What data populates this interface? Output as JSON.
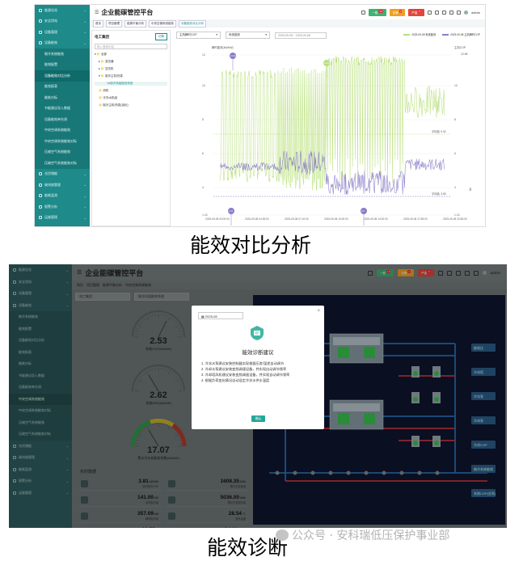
{
  "panel1": {
    "app_title": "企业能碳管控平台",
    "sidebar": [
      {
        "label": "能源总览",
        "type": "top"
      },
      {
        "label": "安全用电",
        "type": "top"
      },
      {
        "label": "设备管理",
        "type": "top"
      },
      {
        "label": "设备能效",
        "type": "top"
      },
      {
        "label": "制冷系统能效",
        "type": "sub"
      },
      {
        "label": "能效配置",
        "type": "sub"
      },
      {
        "label": "设备能效对比分析",
        "type": "sub",
        "active": true
      },
      {
        "label": "能效报表",
        "type": "sub"
      },
      {
        "label": "能耗对标",
        "type": "sub"
      },
      {
        "label": "节能建议导入数据",
        "type": "sub"
      },
      {
        "label": "设备能效单台测",
        "type": "sub"
      },
      {
        "label": "中央空调系统能效",
        "type": "sub"
      },
      {
        "label": "中央空调系统能效对标",
        "type": "sub"
      },
      {
        "label": "压缩空气系统能效",
        "type": "sub"
      },
      {
        "label": "压缩空气系统能效对标",
        "type": "sub"
      },
      {
        "label": "光伏储能",
        "type": "top"
      },
      {
        "label": "碳排放管理",
        "type": "top"
      },
      {
        "label": "能耗监测",
        "type": "top"
      },
      {
        "label": "报警分析",
        "type": "top"
      },
      {
        "label": "运维管理",
        "type": "top"
      }
    ],
    "header": {
      "tags": [
        {
          "label": "一般",
          "badge": "13",
          "color": "#3cb371"
        },
        {
          "label": "告警",
          "badge": "2",
          "color": "#f0a020"
        },
        {
          "label": "严重",
          "badge": "8",
          "color": "#e2463c"
        }
      ],
      "user": "admin"
    },
    "breadcrumb": [
      "首页",
      "项目管理",
      "能源平衡分析",
      "中央空调系统能效",
      "设备能效对比分析"
    ],
    "tree": {
      "title": "电工集团",
      "button": "切换",
      "search_placeholder": "输入搜索内容",
      "nodes": [
        {
          "label": "▾ 📁 全部",
          "indent": 0
        },
        {
          "label": "▸ 📁 变压器",
          "indent": 1
        },
        {
          "label": "▸ 📁 空压机",
          "indent": 1
        },
        {
          "label": "▾ 📁 制冷主机/热泵",
          "indent": 1
        },
        {
          "label": "📄 1#制冷机组能效系统",
          "indent": 2,
          "selected": true
        },
        {
          "label": "📁 风机",
          "indent": 1
        },
        {
          "label": "📁 冷冻水机组",
          "indent": 1
        },
        {
          "label": "📁 制冷主机/热泵(溴化)",
          "indent": 1
        }
      ]
    },
    "controls": {
      "metric": "主机瞬时COP",
      "compare": "系统能效",
      "date_range": "2025-09-08 ~ 2025-09-08"
    },
    "legend": [
      "2025-09-08 系统能效",
      "2025-09-08 主机瞬时COP"
    ],
    "chart_data": {
      "type": "line",
      "y_left_label": "瞬时能效(kW/kW)",
      "y_right_label": "主机COP",
      "x_ticks": [
        "2025-09-08 00:00:00",
        "2025-09-08 04:35:00",
        "2025-09-08 07:10:00",
        "2025-09-08 10:00:00",
        "2025-09-08 14:00:00",
        "2025-09-08 17:55:00",
        "2025-09-08 23:55:00"
      ],
      "y_left_ticks": [
        "1.24",
        "4",
        "6",
        "8",
        "10",
        "12"
      ],
      "y_right_ticks": [
        "1.24",
        "4",
        "6",
        "8",
        "10",
        "12.65"
      ],
      "y_right_top": "12.65",
      "avg_labels": [
        "平均值: 9.32",
        "平均值: 3.95"
      ],
      "markers": [
        "12.14",
        "1.24",
        "0.3",
        "12.65"
      ]
    }
  },
  "caption1": "能效对比分析",
  "panel2": {
    "app_title": "企业能碳管控平台",
    "sidebar": [
      {
        "label": "能源总览",
        "type": "top"
      },
      {
        "label": "安全用电",
        "type": "top"
      },
      {
        "label": "设备管理",
        "type": "top"
      },
      {
        "label": "设备能效",
        "type": "top"
      },
      {
        "label": "制冷系统能效",
        "type": "sub"
      },
      {
        "label": "能效配置",
        "type": "sub"
      },
      {
        "label": "设备能效对比分析",
        "type": "sub"
      },
      {
        "label": "能效报表",
        "type": "sub"
      },
      {
        "label": "能耗对标",
        "type": "sub"
      },
      {
        "label": "节能建议导入数据",
        "type": "sub"
      },
      {
        "label": "设备能效单台测",
        "type": "sub"
      },
      {
        "label": "中央空调系统能效",
        "type": "sub",
        "active": true
      },
      {
        "label": "中央空调系统能效对标",
        "type": "sub"
      },
      {
        "label": "压缩空气系统能效",
        "type": "sub"
      },
      {
        "label": "压缩空气系统能效对标",
        "type": "sub"
      },
      {
        "label": "光伏储能",
        "type": "top"
      },
      {
        "label": "碳排放管理",
        "type": "top"
      },
      {
        "label": "能耗监测",
        "type": "top"
      },
      {
        "label": "报警分析",
        "type": "top"
      },
      {
        "label": "运维管理",
        "type": "top"
      }
    ],
    "header": {
      "tags": [
        {
          "label": "一般",
          "badge": "13",
          "color": "#3cb371"
        },
        {
          "label": "告警",
          "badge": "2",
          "color": "#f0a020"
        },
        {
          "label": "严重",
          "badge": "8",
          "color": "#e2463c"
        }
      ],
      "user": "admin"
    },
    "breadcrumb": [
      "首页",
      "项目管理",
      "能源平衡分析",
      "中央空调系统能效"
    ],
    "controls": {
      "project": "电工集团",
      "system": "制冷机组能效系统",
      "tab1": "能效",
      "tab2": "运行分析"
    },
    "gauges": [
      {
        "value": "2.53",
        "label": "系统COP(kW/kW)"
      },
      {
        "value": "2.62",
        "label": "系统EER(kW/kW)"
      },
      {
        "value": "17.07",
        "label": "累计冷水机能效系数(kW/kW)"
      }
    ],
    "realtime_title": "实时数据",
    "realtime": [
      {
        "value": "3.81",
        "unit": "kW/kW",
        "label": "实时制冷COP"
      },
      {
        "value": "1608.35",
        "unit": "kWh",
        "label": "累计日总耗电"
      },
      {
        "value": "141.00",
        "unit": "kW",
        "label": "实时制冷量"
      },
      {
        "value": "5036.00",
        "unit": "kWh",
        "label": "累计日总制冷量"
      },
      {
        "value": "357.09",
        "unit": "kW",
        "label": "瞬时制冷量"
      },
      {
        "value": "28.54",
        "unit": "℃",
        "label": "室外温度"
      },
      {
        "value": "82.55",
        "unit": "%",
        "label": "室外相对湿度"
      },
      {
        "value": "94.01",
        "unit": "kWh/t",
        "label": "累计冷量能效"
      }
    ],
    "modal": {
      "date": "2025-08",
      "title": "能效诊断建议",
      "items": [
        "1. 冷冻水泵建议安装控制器实现根据压差/温差自动调节",
        "2. 冷却水泵建议安装变频调速设备，并实现自动调节频率",
        "3. 冷却塔风机建议安装变频调速设备，并实现自动调节频率",
        "4. 根据负荷变化情况自动设定冷冻水供水温度"
      ],
      "ok": "确认"
    },
    "diagram_buttons": [
      "能效比",
      "冷却塔",
      "冷冻泵",
      "冷却泵",
      "冷却COP",
      "制冷系统能效",
      "系统COP(含泵)"
    ]
  },
  "caption2": "能效诊断",
  "watermark": "公众号 · 安科瑞低压保护事业部"
}
